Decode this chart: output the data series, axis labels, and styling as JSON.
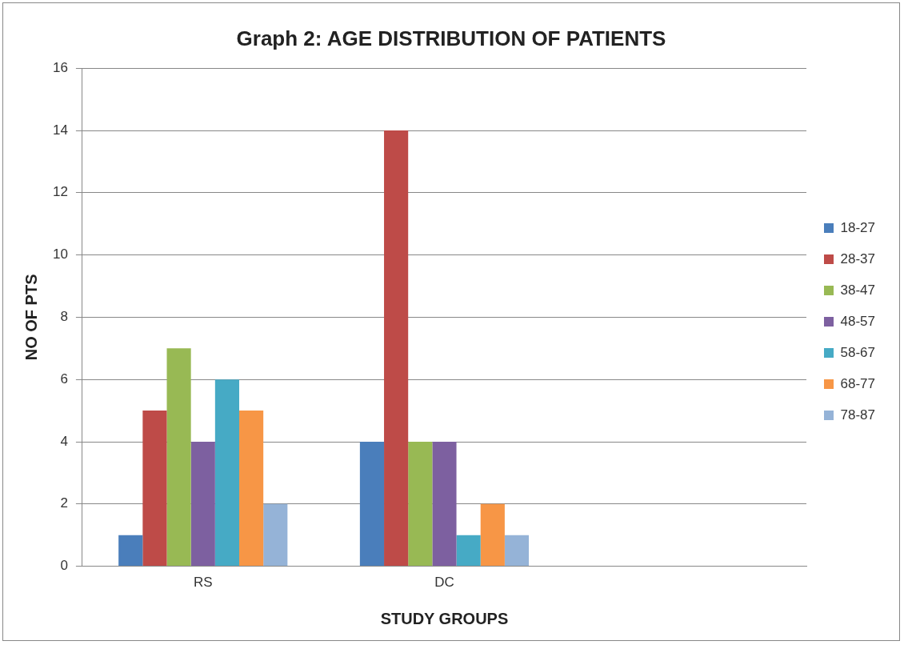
{
  "chart_data": {
    "type": "bar",
    "title": "Graph 2: AGE DISTRIBUTION OF PATIENTS",
    "xlabel": "STUDY GROUPS",
    "ylabel": "NO OF PTS",
    "categories": [
      "RS",
      "DC",
      null
    ],
    "series": [
      {
        "name": "18-27",
        "color": "#4a7ebb",
        "values": [
          1,
          4,
          null
        ]
      },
      {
        "name": "28-37",
        "color": "#be4b48",
        "values": [
          5,
          14,
          null
        ]
      },
      {
        "name": "38-47",
        "color": "#98b954",
        "values": [
          7,
          4,
          null
        ]
      },
      {
        "name": "48-57",
        "color": "#7d60a0",
        "values": [
          4,
          4,
          null
        ]
      },
      {
        "name": "58-67",
        "color": "#46aac5",
        "values": [
          6,
          1,
          null
        ]
      },
      {
        "name": "68-77",
        "color": "#f79646",
        "values": [
          5,
          2,
          null
        ]
      },
      {
        "name": "78-87",
        "color": "#95b3d7",
        "values": [
          2,
          1,
          null
        ]
      }
    ],
    "ylim": [
      0,
      16
    ],
    "yticks": [
      0,
      2,
      4,
      6,
      8,
      10,
      12,
      14,
      16
    ],
    "grid": "y",
    "legend": "right"
  }
}
